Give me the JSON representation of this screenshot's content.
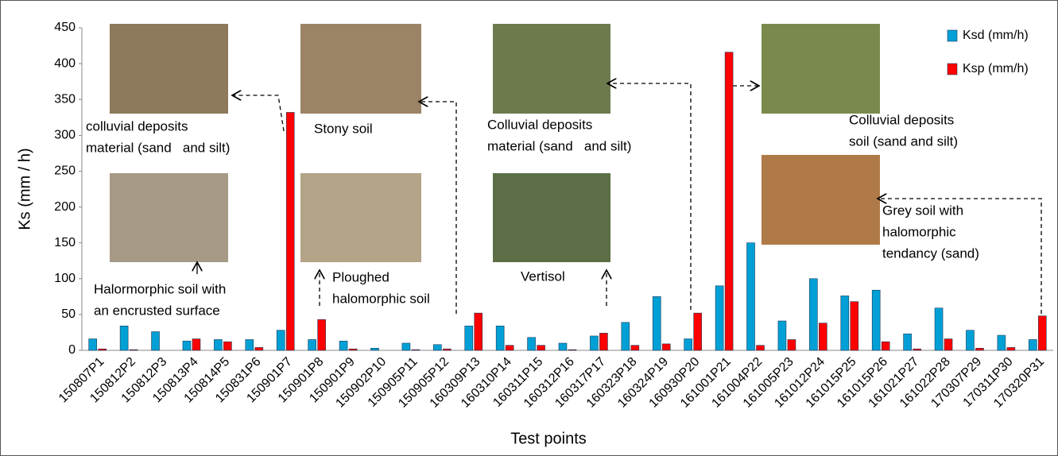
{
  "chart_data": {
    "type": "bar",
    "x_label": "Test points",
    "y_label": "Ks (mm / h)",
    "categories": [
      "150807P1",
      "150812P2",
      "150812P3",
      "150813P4",
      "150814P5",
      "150831P6",
      "150901P7",
      "150901P8",
      "150901P9",
      "150902P10",
      "150905P11",
      "150905P12",
      "160309P13",
      "160310P14",
      "160311P15",
      "160312P16",
      "160317P17",
      "160323P18",
      "160324P19",
      "160930P20",
      "161001P21",
      "161004P22",
      "161005P23",
      "161012P24",
      "161015P25",
      "161015P26",
      "161021P27",
      "161022P28",
      "170307P29",
      "170311P30",
      "170320P31"
    ],
    "series": [
      {
        "name": "Ksd (mm/h)",
        "color": "#00a0d6",
        "values": [
          16,
          34,
          26,
          13,
          15,
          15,
          28,
          15,
          13,
          3,
          10,
          8,
          34,
          34,
          18,
          10,
          20,
          39,
          75,
          16,
          90,
          150,
          41,
          100,
          76,
          84,
          23,
          59,
          28,
          21,
          15
        ]
      },
      {
        "name": "Ksp (mm/h)",
        "color": "#ff0000",
        "values": [
          2,
          1,
          0,
          16,
          12,
          4,
          332,
          43,
          2,
          0,
          1,
          2,
          52,
          7,
          7,
          1,
          24,
          7,
          9,
          52,
          416,
          7,
          15,
          38,
          68,
          12,
          2,
          16,
          3,
          4,
          48
        ]
      }
    ],
    "ylim": [
      0,
      450
    ],
    "yticks": [
      0,
      50,
      100,
      150,
      200,
      250,
      300,
      350,
      400,
      450
    ],
    "legend": "top-right",
    "annotations": [
      {
        "lines": [
          "colluvial deposits",
          "material (sand   and silt)"
        ]
      },
      {
        "lines": [
          "Stony soil"
        ]
      },
      {
        "lines": [
          "Colluvial deposits",
          "material (sand   and silt)"
        ]
      },
      {
        "lines": [
          "Colluvial deposits",
          "soil (sand and silt)"
        ]
      },
      {
        "lines": [
          "Grey soil with",
          "halomorphic",
          "tendancy (sand)"
        ]
      },
      {
        "lines": [
          "Halormorphic soil with",
          "an encrusted surface"
        ]
      },
      {
        "lines": [
          "Ploughed",
          "halomorphic soil"
        ]
      },
      {
        "lines": [
          "Vertisol"
        ]
      }
    ]
  }
}
